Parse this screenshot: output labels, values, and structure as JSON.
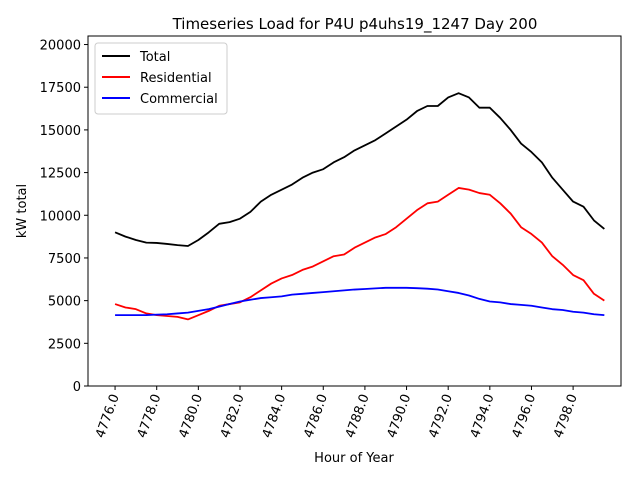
{
  "chart_data": {
    "type": "line",
    "title": "Timeseries Load for P4U p4uhs19_1247  Day 200",
    "xlabel": "Hour of Year",
    "ylabel": "kW total",
    "xlim": [
      4774.7,
      4800.3
    ],
    "ylim": [
      0,
      20500
    ],
    "xticks": [
      4776,
      4778,
      4780,
      4782,
      4784,
      4786,
      4788,
      4790,
      4792,
      4794,
      4796,
      4798
    ],
    "xtick_labels": [
      "4776.0",
      "4778.0",
      "4780.0",
      "4782.0",
      "4784.0",
      "4786.0",
      "4788.0",
      "4790.0",
      "4792.0",
      "4794.0",
      "4796.0",
      "4798.0"
    ],
    "yticks": [
      0,
      2500,
      5000,
      7500,
      10000,
      12500,
      15000,
      17500,
      20000
    ],
    "ytick_labels": [
      "0",
      "2500",
      "5000",
      "7500",
      "10000",
      "12500",
      "15000",
      "17500",
      "20000"
    ],
    "legend_position": "top-left",
    "series": [
      {
        "name": "Total",
        "color": "#000000",
        "x": [
          4776,
          4776.5,
          4777,
          4777.5,
          4778,
          4778.5,
          4779,
          4779.5,
          4780,
          4780.5,
          4781,
          4781.5,
          4782,
          4782.5,
          4783,
          4783.5,
          4784,
          4784.5,
          4785,
          4785.5,
          4786,
          4786.5,
          4787,
          4787.5,
          4788,
          4788.5,
          4789,
          4789.5,
          4790,
          4790.5,
          4791,
          4791.5,
          4792,
          4792.5,
          4793,
          4793.5,
          4794,
          4794.5,
          4795,
          4795.5,
          4796,
          4796.5,
          4797,
          4797.5,
          4798,
          4798.5,
          4799,
          4799.5
        ],
        "values": [
          9000,
          8750,
          8550,
          8400,
          8380,
          8320,
          8250,
          8200,
          8550,
          9000,
          9500,
          9600,
          9800,
          10200,
          10800,
          11200,
          11500,
          11800,
          12200,
          12500,
          12700,
          13100,
          13400,
          13800,
          14100,
          14400,
          14800,
          15200,
          15600,
          16100,
          16400,
          16400,
          16900,
          17150,
          16900,
          16300,
          16300,
          15700,
          15000,
          14200,
          13700,
          13100,
          12200,
          11500,
          10800,
          10500,
          9700,
          9200
        ]
      },
      {
        "name": "Residential",
        "color": "#ff0000",
        "x": [
          4776,
          4776.5,
          4777,
          4777.5,
          4778,
          4778.5,
          4779,
          4779.5,
          4780,
          4780.5,
          4781,
          4781.5,
          4782,
          4782.5,
          4783,
          4783.5,
          4784,
          4784.5,
          4785,
          4785.5,
          4786,
          4786.5,
          4787,
          4787.5,
          4788,
          4788.5,
          4789,
          4789.5,
          4790,
          4790.5,
          4791,
          4791.5,
          4792,
          4792.5,
          4793,
          4793.5,
          4794,
          4794.5,
          4795,
          4795.5,
          4796,
          4796.5,
          4797,
          4797.5,
          4798,
          4798.5,
          4799,
          4799.5
        ],
        "values": [
          4800,
          4600,
          4500,
          4250,
          4150,
          4100,
          4050,
          3900,
          4150,
          4400,
          4700,
          4800,
          4900,
          5200,
          5600,
          6000,
          6300,
          6500,
          6800,
          7000,
          7300,
          7600,
          7700,
          8100,
          8400,
          8700,
          8900,
          9300,
          9800,
          10300,
          10700,
          10800,
          11200,
          11600,
          11500,
          11300,
          11200,
          10700,
          10100,
          9300,
          8900,
          8400,
          7600,
          7100,
          6500,
          6200,
          5400,
          5000
        ]
      },
      {
        "name": "Commercial",
        "color": "#0000ff",
        "x": [
          4776,
          4776.5,
          4777,
          4777.5,
          4778,
          4778.5,
          4779,
          4779.5,
          4780,
          4780.5,
          4781,
          4781.5,
          4782,
          4782.5,
          4783,
          4783.5,
          4784,
          4784.5,
          4785,
          4785.5,
          4786,
          4786.5,
          4787,
          4787.5,
          4788,
          4788.5,
          4789,
          4789.5,
          4790,
          4790.5,
          4791,
          4791.5,
          4792,
          4792.5,
          4793,
          4793.5,
          4794,
          4794.5,
          4795,
          4795.5,
          4796,
          4796.5,
          4797,
          4797.5,
          4798,
          4798.5,
          4799,
          4799.5
        ],
        "values": [
          4150,
          4150,
          4150,
          4150,
          4180,
          4200,
          4250,
          4300,
          4400,
          4500,
          4650,
          4800,
          4950,
          5050,
          5150,
          5200,
          5250,
          5350,
          5400,
          5450,
          5500,
          5550,
          5600,
          5650,
          5680,
          5720,
          5750,
          5750,
          5750,
          5730,
          5700,
          5650,
          5550,
          5450,
          5300,
          5100,
          4950,
          4900,
          4800,
          4750,
          4700,
          4600,
          4500,
          4450,
          4350,
          4300,
          4200,
          4150
        ]
      }
    ]
  }
}
